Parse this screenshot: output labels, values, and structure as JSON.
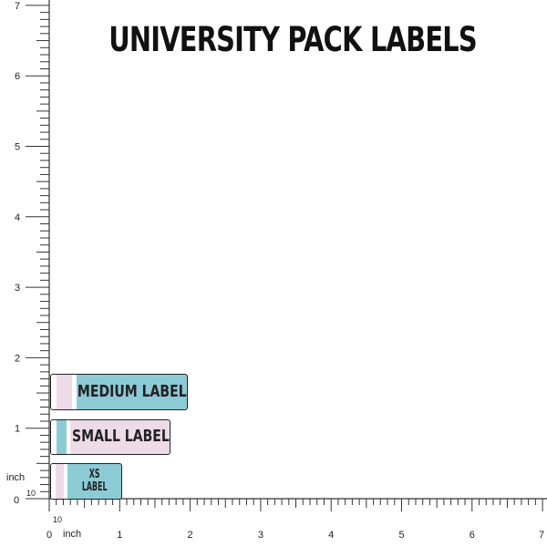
{
  "title": "UNIVERSITY PACK LABELS",
  "labels": {
    "medium": {
      "text": "MEDIUM LABEL",
      "bg_color": "#8ccbd5",
      "stripe_colors": [
        "#eddbe8",
        "#ffffff"
      ]
    },
    "small": {
      "text": "SMALL LABEL",
      "bg_color": "#eddbe8",
      "stripe_colors": [
        "#8ccbd5",
        "#ffffff"
      ]
    },
    "xs": {
      "line1": "XS",
      "line2": "LABEL",
      "bg_color": "#8ccbd5",
      "stripe_colors": [
        "#eddbe8",
        "#ffffff"
      ]
    }
  },
  "ruler": {
    "x_ticks": [
      "0",
      "1",
      "2",
      "3",
      "4",
      "5",
      "6",
      "7"
    ],
    "y_ticks": [
      "0",
      "1",
      "2",
      "3",
      "4",
      "5",
      "6",
      "7"
    ],
    "x_unit": "inch",
    "y_unit": "inch",
    "x_sub": "10",
    "y_sub": "10",
    "subdivisions": 10
  }
}
